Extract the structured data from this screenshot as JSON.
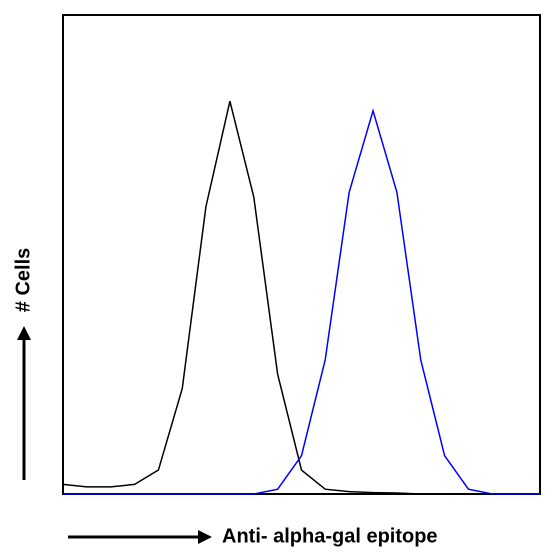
{
  "chart_data": {
    "type": "line",
    "y_label": "# Cells",
    "x_label": "Anti- alpha-gal epitope",
    "x": [
      1,
      1.58,
      2.51,
      3.98,
      6.31,
      10,
      15.8,
      25.1,
      39.8,
      63.1,
      100,
      158,
      251,
      398,
      631,
      1000,
      1585,
      2512,
      3981,
      6310,
      10000
    ],
    "x_log": true,
    "xlim": [
      1,
      10000
    ],
    "ylim": [
      0,
      100
    ],
    "series": [
      {
        "color": "#000000",
        "values": [
          2,
          1.5,
          1.5,
          2,
          5,
          22,
          60,
          82,
          62,
          25,
          5,
          1,
          0.5,
          0.3,
          0.2,
          0,
          0,
          0,
          0,
          0,
          0
        ]
      },
      {
        "color": "#0000ff",
        "values": [
          0,
          0,
          0,
          0,
          0,
          0,
          0,
          0,
          0,
          1,
          8,
          28,
          63,
          80,
          63,
          28,
          8,
          1,
          0,
          0,
          0
        ]
      }
    ]
  }
}
